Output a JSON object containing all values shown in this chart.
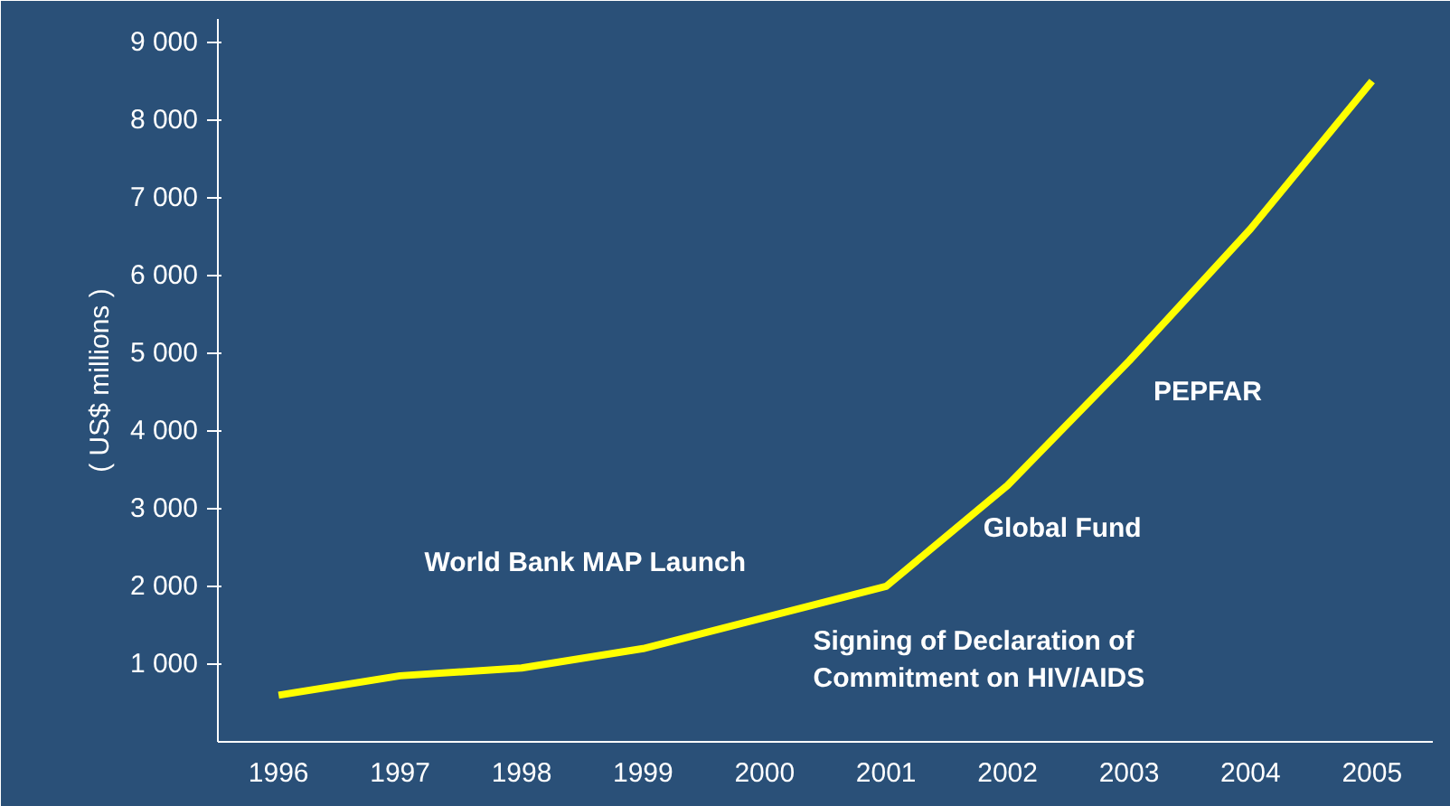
{
  "chart_data": {
    "type": "line",
    "ylabel": "( US$ millions )",
    "categories": [
      "1996",
      "1997",
      "1998",
      "1999",
      "2000",
      "2001",
      "2002",
      "2003",
      "2004",
      "2005"
    ],
    "series": [
      {
        "color": "#ffff00",
        "values": [
          600,
          850,
          950,
          1200,
          1600,
          2000,
          3300,
          4900,
          6600,
          8500
        ]
      }
    ],
    "ylim": [
      0,
      9300
    ],
    "yticks": [
      {
        "value": 1000,
        "label": "1 000"
      },
      {
        "value": 2000,
        "label": "2 000"
      },
      {
        "value": 3000,
        "label": "3 000"
      },
      {
        "value": 4000,
        "label": "4 000"
      },
      {
        "value": 5000,
        "label": "5 000"
      },
      {
        "value": 6000,
        "label": "6 000"
      },
      {
        "value": 7000,
        "label": "7 000"
      },
      {
        "value": 8000,
        "label": "8 000"
      },
      {
        "value": 9000,
        "label": "9 000"
      }
    ],
    "annotations": [
      "World Bank MAP Launch",
      "Signing of Declaration of\nCommitment on HIV/AIDS",
      "Global Fund",
      "PEPFAR"
    ],
    "grid": false,
    "marker": "none",
    "line_style": "solid"
  }
}
